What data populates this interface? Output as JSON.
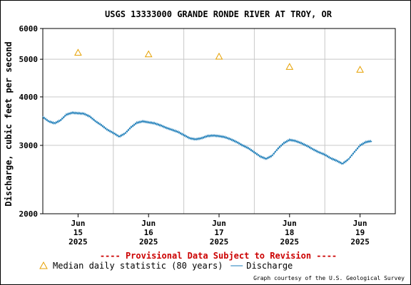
{
  "chart_data": {
    "type": "line",
    "title": "USGS 13333000 GRANDE RONDE RIVER AT TROY, OR",
    "ylabel": "Discharge, cubic feet per second",
    "xlabel": "",
    "yscale": "log",
    "ylim": [
      2000,
      6000
    ],
    "yticks": [
      {
        "value": 2000,
        "label": "2000"
      },
      {
        "value": 3000,
        "label": "3000"
      },
      {
        "value": 4000,
        "label": "4000"
      },
      {
        "value": 5000,
        "label": "5000"
      },
      {
        "value": 6000,
        "label": "6000"
      }
    ],
    "xlim": [
      "2025-06-14T12:00",
      "2025-06-19T12:00"
    ],
    "xticks": [
      {
        "date": "2025-06-15T00:00",
        "lines": [
          "Jun",
          "15",
          "2025"
        ]
      },
      {
        "date": "2025-06-16T00:00",
        "lines": [
          "Jun",
          "16",
          "2025"
        ]
      },
      {
        "date": "2025-06-17T00:00",
        "lines": [
          "Jun",
          "17",
          "2025"
        ]
      },
      {
        "date": "2025-06-18T00:00",
        "lines": [
          "Jun",
          "18",
          "2025"
        ]
      },
      {
        "date": "2025-06-19T00:00",
        "lines": [
          "Jun",
          "19",
          "2025"
        ]
      }
    ],
    "grid": true,
    "series": [
      {
        "name": "Discharge",
        "color": "#1b7cb8",
        "marker": "line",
        "x": [
          "2025-06-14T12:00",
          "2025-06-14T14:00",
          "2025-06-14T16:00",
          "2025-06-14T18:00",
          "2025-06-14T20:00",
          "2025-06-14T22:00",
          "2025-06-15T00:00",
          "2025-06-15T02:00",
          "2025-06-15T04:00",
          "2025-06-15T06:00",
          "2025-06-15T08:00",
          "2025-06-15T10:00",
          "2025-06-15T12:00",
          "2025-06-15T14:00",
          "2025-06-15T16:00",
          "2025-06-15T18:00",
          "2025-06-15T20:00",
          "2025-06-15T22:00",
          "2025-06-16T00:00",
          "2025-06-16T02:00",
          "2025-06-16T04:00",
          "2025-06-16T06:00",
          "2025-06-16T08:00",
          "2025-06-16T10:00",
          "2025-06-16T12:00",
          "2025-06-16T14:00",
          "2025-06-16T16:00",
          "2025-06-16T18:00",
          "2025-06-16T20:00",
          "2025-06-16T22:00",
          "2025-06-17T00:00",
          "2025-06-17T02:00",
          "2025-06-17T04:00",
          "2025-06-17T06:00",
          "2025-06-17T08:00",
          "2025-06-17T10:00",
          "2025-06-17T12:00",
          "2025-06-17T14:00",
          "2025-06-17T16:00",
          "2025-06-17T18:00",
          "2025-06-17T20:00",
          "2025-06-17T22:00",
          "2025-06-18T00:00",
          "2025-06-18T02:00",
          "2025-06-18T04:00",
          "2025-06-18T06:00",
          "2025-06-18T08:00",
          "2025-06-18T10:00",
          "2025-06-18T12:00",
          "2025-06-18T14:00",
          "2025-06-18T16:00",
          "2025-06-18T18:00",
          "2025-06-18T20:00",
          "2025-06-18T22:00",
          "2025-06-19T00:00",
          "2025-06-19T02:00",
          "2025-06-19T04:00"
        ],
        "values": [
          3550,
          3460,
          3420,
          3480,
          3600,
          3640,
          3630,
          3620,
          3560,
          3460,
          3380,
          3290,
          3230,
          3160,
          3220,
          3340,
          3430,
          3460,
          3440,
          3420,
          3380,
          3330,
          3290,
          3250,
          3190,
          3130,
          3110,
          3130,
          3170,
          3180,
          3170,
          3150,
          3110,
          3060,
          3000,
          2950,
          2880,
          2810,
          2770,
          2820,
          2940,
          3040,
          3100,
          3080,
          3040,
          2990,
          2930,
          2880,
          2840,
          2780,
          2740,
          2690,
          2760,
          2880,
          3000,
          3060,
          3080
        ]
      },
      {
        "name": "Median daily statistic (80 years)",
        "color": "#e6a000",
        "marker": "triangle",
        "x": [
          "2025-06-15T00:00",
          "2025-06-16T00:00",
          "2025-06-17T00:00",
          "2025-06-18T00:00",
          "2025-06-19T00:00"
        ],
        "values": [
          5200,
          5150,
          5080,
          4780,
          4700
        ]
      }
    ],
    "legend": [
      {
        "label": "Median daily statistic (80 years)",
        "marker": "triangle",
        "color": "#e6a000"
      },
      {
        "label": "Discharge",
        "marker": "line",
        "color": "#1b7cb8"
      }
    ],
    "legend_position": "bottom-left"
  },
  "notice": "---- Provisional Data Subject to Revision ----",
  "credit": "Graph courtesy of the U.S. Geological Survey",
  "colors": {
    "notice": "#cc0000",
    "grid": "#c8c8c8"
  }
}
